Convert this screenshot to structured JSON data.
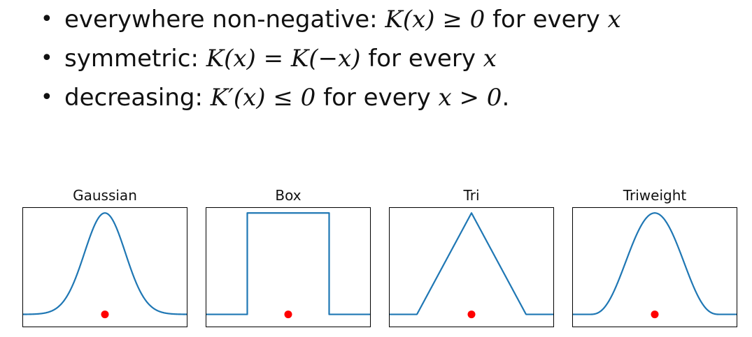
{
  "bullets": [
    {
      "lead": "everywhere non-negative: ",
      "math": "K(x) ≥ 0",
      "mid": " for every ",
      "tail": "x",
      "end": ""
    },
    {
      "lead": "symmetric: ",
      "math": "K(x) = K(−x)",
      "mid": " for every ",
      "tail": "x",
      "end": ""
    },
    {
      "lead": "decreasing: ",
      "math": "K′(x) ≤ 0",
      "mid": " for every ",
      "tail": "x > 0",
      "end": "."
    }
  ],
  "bullet_glyph": "•",
  "colors": {
    "curve": "#1f77b4",
    "point": "#ff0000",
    "axes": "#000000"
  },
  "chart_data": [
    {
      "type": "line",
      "title": "Gaussian",
      "grid": false,
      "series": [
        {
          "kernel": "gaussian",
          "bandwidth": 1
        }
      ],
      "point": {
        "x": 0,
        "y": 0
      },
      "xlim": [
        -4,
        4
      ],
      "ylim": [
        -0.12,
        1.05
      ]
    },
    {
      "type": "line",
      "title": "Box",
      "grid": false,
      "series": [
        {
          "kernel": "box",
          "support": [
            -1,
            1
          ]
        }
      ],
      "point": {
        "x": 0,
        "y": 0
      },
      "xlim": [
        -2,
        2
      ],
      "ylim": [
        -0.12,
        1.05
      ]
    },
    {
      "type": "line",
      "title": "Tri",
      "grid": false,
      "series": [
        {
          "kernel": "triangular",
          "support": [
            -1,
            1
          ]
        }
      ],
      "point": {
        "x": 0,
        "y": 0
      },
      "xlim": [
        -1.5,
        1.5
      ],
      "ylim": [
        -0.12,
        1.05
      ]
    },
    {
      "type": "line",
      "title": "Triweight",
      "grid": false,
      "series": [
        {
          "kernel": "triweight",
          "support": [
            -1,
            1
          ]
        }
      ],
      "point": {
        "x": 0,
        "y": 0
      },
      "xlim": [
        -1.25,
        1.25
      ],
      "ylim": [
        -0.12,
        1.05
      ]
    }
  ]
}
